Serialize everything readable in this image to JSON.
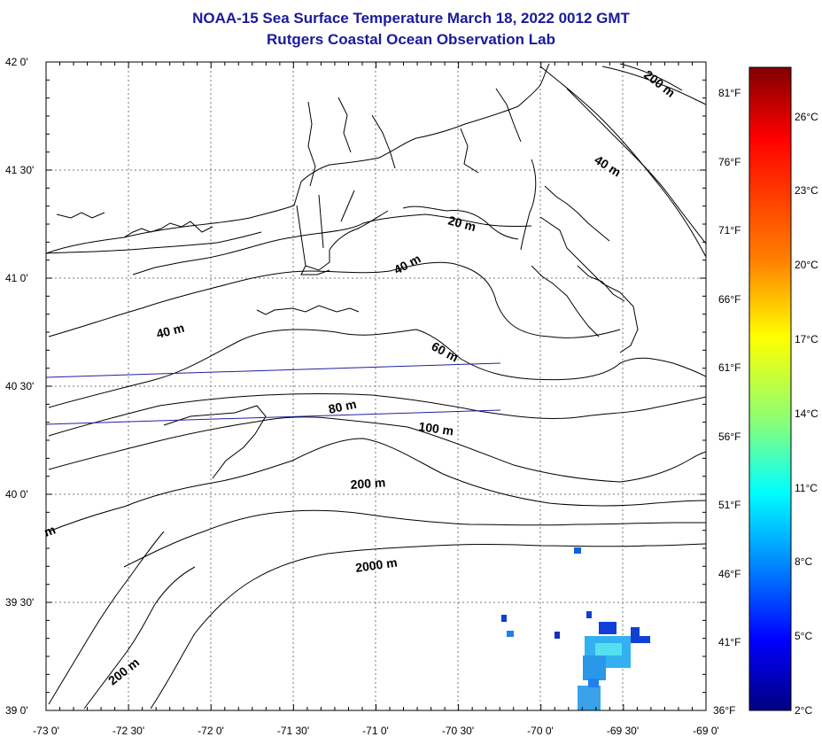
{
  "header": {
    "title": "NOAA-15 Sea Surface Temperature March 18, 2022 0012 GMT",
    "subtitle": "Rutgers Coastal Ocean Observation Lab"
  },
  "map": {
    "lon_labels": [
      "-73 0'",
      "-72 30'",
      "-72 0'",
      "-71 30'",
      "-71 0'",
      "-70 30'",
      "-70 0'",
      "-69 30'",
      "-69 0'"
    ],
    "lat_labels": [
      "42 0'",
      "41 30'",
      "41 0'",
      "40 30'",
      "40 0'",
      "39 30'",
      "39 0'"
    ],
    "fahrenheit_labels": [
      "81°F",
      "76°F",
      "71°F",
      "66°F",
      "61°F",
      "56°F",
      "51°F",
      "46°F",
      "41°F",
      "36°F"
    ],
    "contour_labels": {
      "c200_ne": "200 m",
      "c40_ne": "40 m",
      "c20": "20 m",
      "c40_mid": "40 m",
      "c40_west": "40 m",
      "c60": "60 m",
      "c80": "80 m",
      "c100": "100 m",
      "c200_mid": "200 m",
      "c2000": "2000 m",
      "c200_sw": "200 m",
      "cm_edge": "m"
    }
  },
  "colorbar": {
    "labels": [
      "26°C",
      "23°C",
      "20°C",
      "17°C",
      "14°C",
      "11°C",
      "8°C",
      "5°C",
      "2°C"
    ],
    "colors": [
      "#800000",
      "#ff0000",
      "#ff8000",
      "#ffff00",
      "#80ff80",
      "#00ffff",
      "#0080ff",
      "#0000ff",
      "#000080"
    ]
  },
  "sst_patch_color": "#33a4e8"
}
